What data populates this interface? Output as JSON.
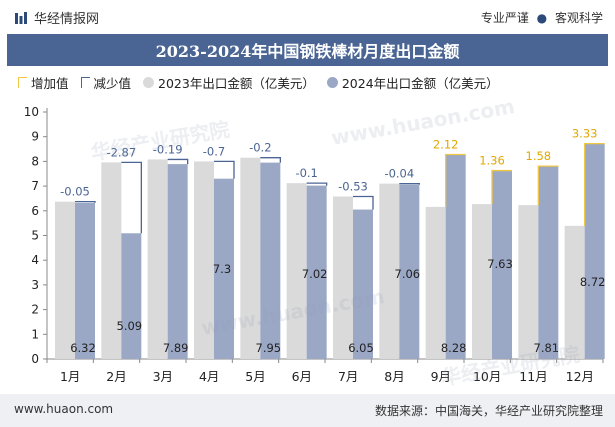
{
  "header": {
    "brand": "华经情报网",
    "tag1": "专业严谨",
    "tag2": "客观科学"
  },
  "title": "2023-2024年中国钢铁棒材月度出口金额",
  "legend": [
    "增加值",
    "减少值",
    "2023年出口金额（亿美元）",
    "2024年出口金额（亿美元）"
  ],
  "footer": {
    "url": "www.huaon.com",
    "source": "数据来源：中国海关，华经产业研究院整理"
  },
  "watermarks": [
    "华经产业研究院",
    "www.huaon.com",
    "华经产业研究院",
    "www.huaon.com"
  ],
  "colors": {
    "bar2023": "#dadada",
    "bar2024": "#9aa7c5",
    "increase": "#f2c744",
    "decrease": "#4a6493",
    "title_bg": "#4a6493"
  },
  "chart_data": {
    "type": "bar",
    "categories": [
      "1月",
      "2月",
      "3月",
      "4月",
      "5月",
      "6月",
      "7月",
      "8月",
      "9月",
      "10月",
      "11月",
      "12月"
    ],
    "series": [
      {
        "name": "2023年出口金额（亿美元）",
        "values": [
          6.37,
          7.96,
          8.08,
          8.0,
          8.15,
          7.12,
          6.58,
          7.1,
          6.16,
          6.27,
          6.23,
          5.39
        ]
      },
      {
        "name": "2024年出口金额（亿美元）",
        "values": [
          6.32,
          5.09,
          7.89,
          7.3,
          7.95,
          7.02,
          6.05,
          7.06,
          8.28,
          7.63,
          7.81,
          8.72
        ]
      }
    ],
    "change": [
      -0.05,
      -2.87,
      -0.19,
      -0.7,
      -0.2,
      -0.1,
      -0.53,
      -0.04,
      2.12,
      1.36,
      1.58,
      3.33
    ],
    "change_labels": [
      "-0.05",
      "-2.87",
      "-0.19",
      "-0.7",
      "-0.2",
      "-0.1",
      "-0.53",
      "-0.04",
      "2.12",
      "1.36",
      "1.58",
      "3.33"
    ],
    "value_labels": [
      "6.32",
      "5.09",
      "7.89",
      "7.3",
      "7.95",
      "7.02",
      "6.05",
      "7.06",
      "8.28",
      "7.63",
      "7.81",
      "8.72"
    ],
    "y_ticks": [
      "0",
      "1",
      "2",
      "3",
      "4",
      "5",
      "6",
      "7",
      "8",
      "9",
      "10"
    ],
    "ylim": [
      0,
      10
    ],
    "grid": false,
    "legend_position": "top-left"
  }
}
